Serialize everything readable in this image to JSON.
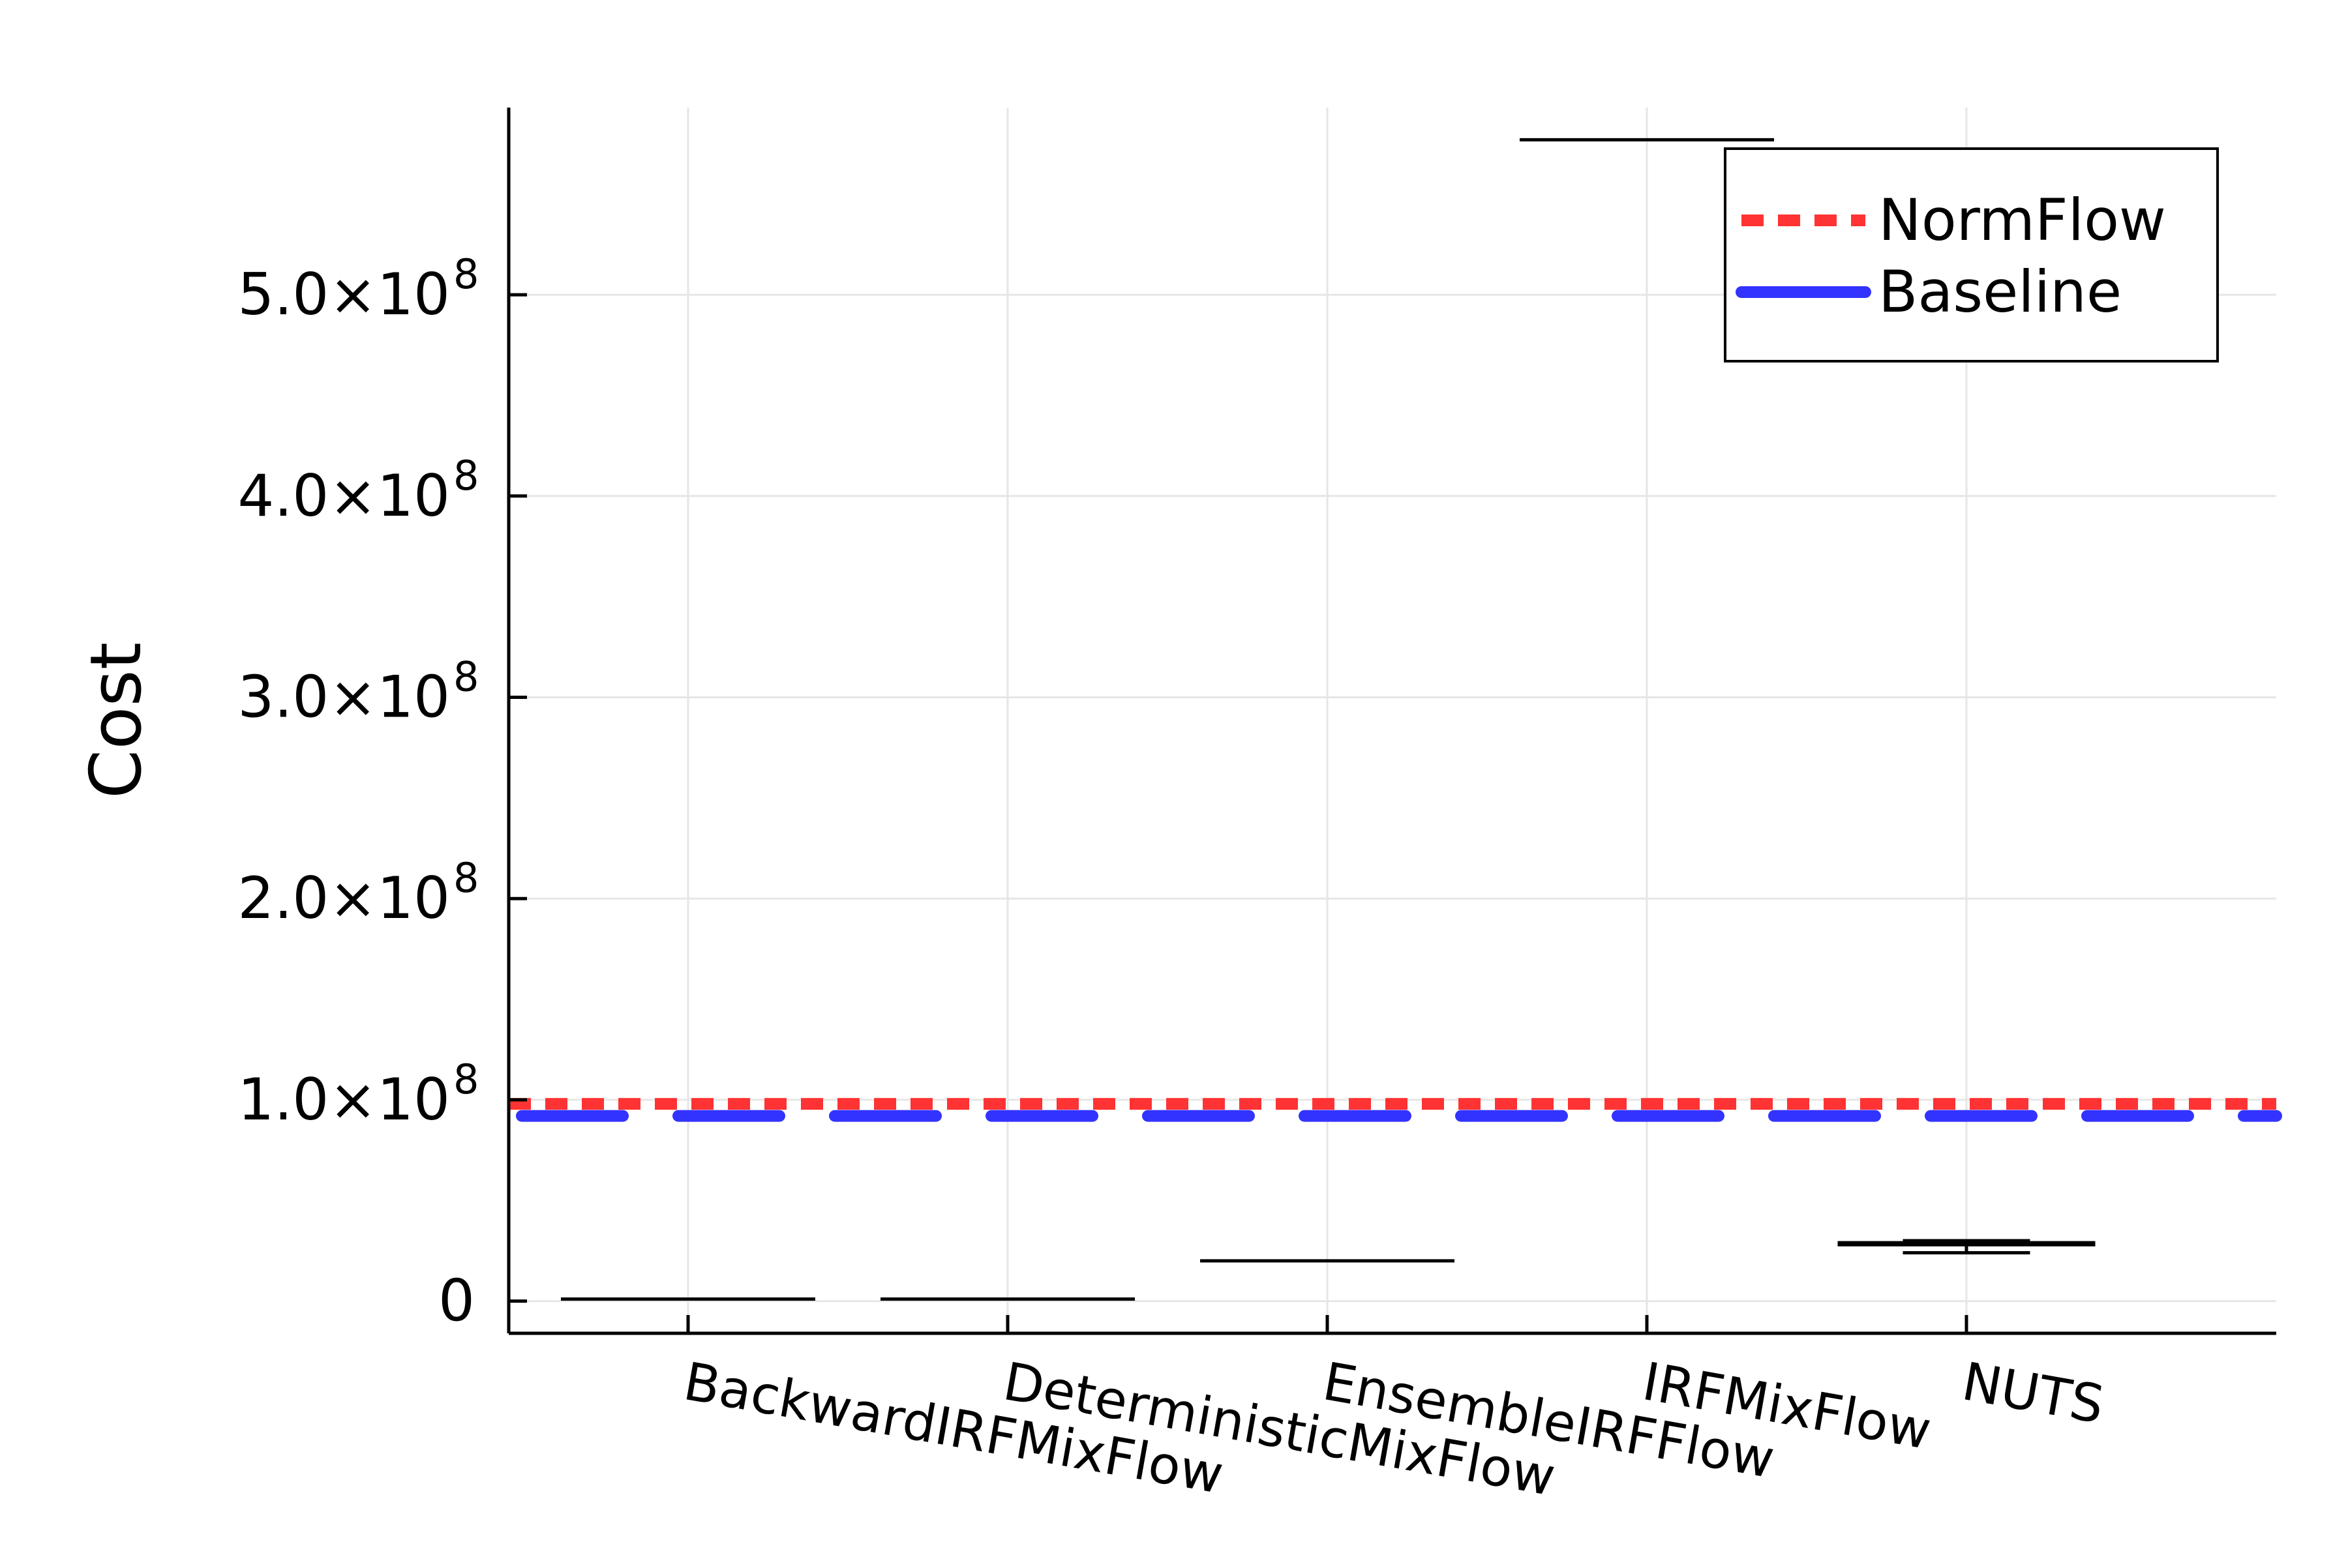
{
  "chart_data": {
    "type": "boxplot",
    "ylabel": "Cost",
    "xlabel": "",
    "title": "",
    "ylim": [
      -16000000,
      593000000
    ],
    "yticks": [
      {
        "value": 0,
        "label": "0",
        "exp": ""
      },
      {
        "value": 100000000,
        "label": "1.0×10",
        "exp": "8"
      },
      {
        "value": 200000000,
        "label": "2.0×10",
        "exp": "8"
      },
      {
        "value": 300000000,
        "label": "3.0×10",
        "exp": "8"
      },
      {
        "value": 400000000,
        "label": "4.0×10",
        "exp": "8"
      },
      {
        "value": 500000000,
        "label": "5.0×10",
        "exp": "8"
      }
    ],
    "categories": [
      "BackwardIRFMixFlow",
      "DeterministicMixFlow",
      "EnsembleIRFFlow",
      "IRFMixFlow",
      "NUTS"
    ],
    "boxes": [
      {
        "category": "BackwardIRFMixFlow",
        "min": 1000000,
        "q1": 1000000,
        "median": 1000000,
        "q3": 1000000,
        "max": 1000000
      },
      {
        "category": "DeterministicMixFlow",
        "min": 1000000,
        "q1": 1000000,
        "median": 1000000,
        "q3": 1000000,
        "max": 1000000
      },
      {
        "category": "EnsembleIRFFlow",
        "min": 20000000,
        "q1": 20000000,
        "median": 20000000,
        "q3": 20000000,
        "max": 20000000
      },
      {
        "category": "IRFMixFlow",
        "min": 577000000,
        "q1": 577000000,
        "median": 577000000,
        "q3": 577000000,
        "max": 577000000
      },
      {
        "category": "NUTS",
        "min": 24000000,
        "q1": 28000000,
        "median": 28500000,
        "q3": 29000000,
        "max": 30000000
      }
    ],
    "reference_lines": [
      {
        "name": "NormFlow",
        "value": 98000000,
        "color": "#ff3333",
        "style": "dotted"
      },
      {
        "name": "Baseline",
        "value": 92000000,
        "color": "#3333ff",
        "style": "dashed"
      }
    ],
    "legend_position": "top-right",
    "grid": true
  }
}
